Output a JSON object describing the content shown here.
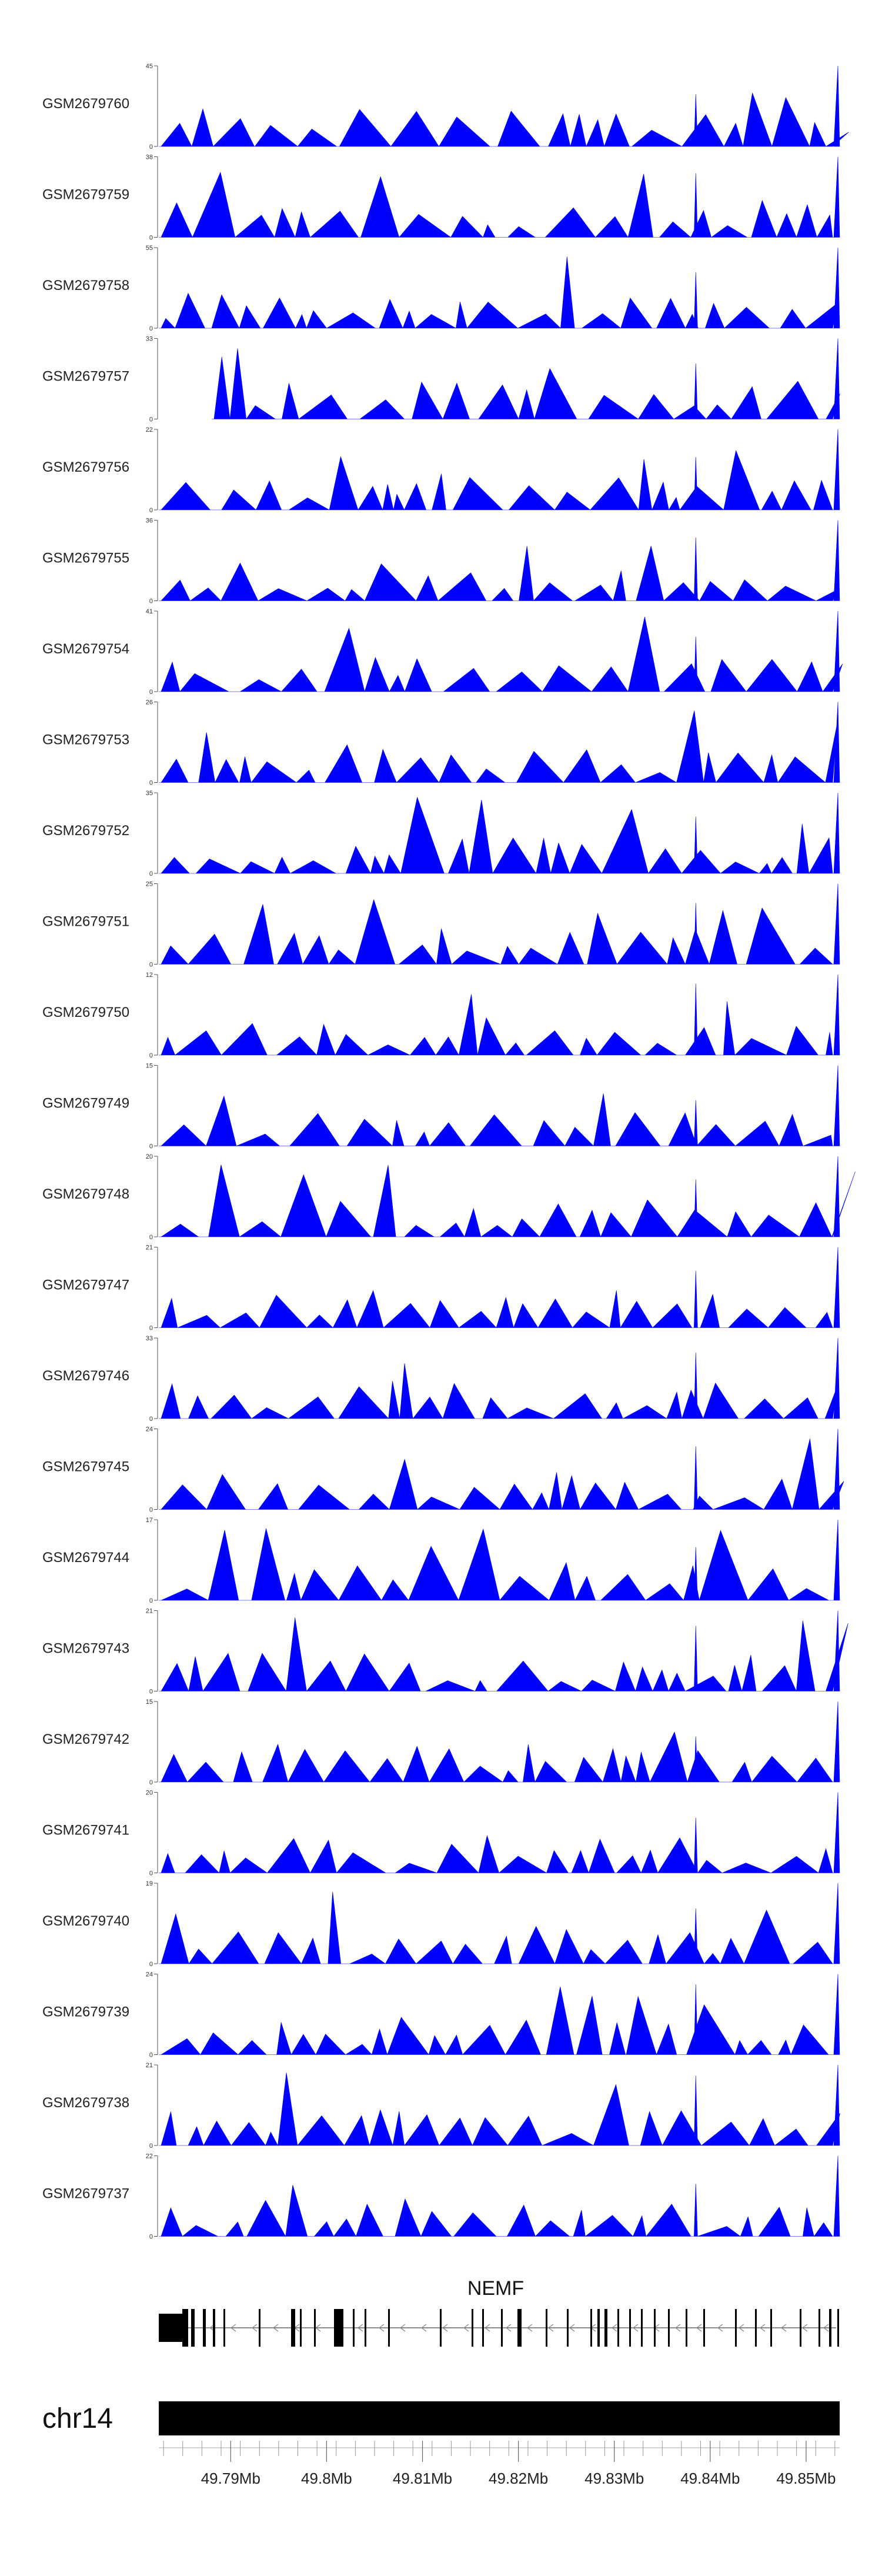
{
  "chart_data": {
    "type": "area",
    "title": "",
    "chromosome": "chr14",
    "gene": "NEMF",
    "fill_color": "#0000ff",
    "x_range_mb": [
      49.7825,
      49.8535
    ],
    "x_ticks": [
      {
        "value": 49.79,
        "label": "49.79Mb"
      },
      {
        "value": 49.8,
        "label": "49.8Mb"
      },
      {
        "value": 49.81,
        "label": "49.81Mb"
      },
      {
        "value": 49.82,
        "label": "49.82Mb"
      },
      {
        "value": 49.83,
        "label": "49.83Mb"
      },
      {
        "value": 49.84,
        "label": "49.84Mb"
      },
      {
        "value": 49.85,
        "label": "49.85Mb"
      }
    ],
    "tracks": [
      {
        "name": "GSM2679760",
        "ymax": 45,
        "ymin": 0
      },
      {
        "name": "GSM2679759",
        "ymax": 38,
        "ymin": 0
      },
      {
        "name": "GSM2679758",
        "ymax": 55,
        "ymin": 0
      },
      {
        "name": "GSM2679757",
        "ymax": 33,
        "ymin": 0
      },
      {
        "name": "GSM2679756",
        "ymax": 22,
        "ymin": 0
      },
      {
        "name": "GSM2679755",
        "ymax": 36,
        "ymin": 0
      },
      {
        "name": "GSM2679754",
        "ymax": 41,
        "ymin": 0
      },
      {
        "name": "GSM2679753",
        "ymax": 26,
        "ymin": 0
      },
      {
        "name": "GSM2679752",
        "ymax": 35,
        "ymin": 0
      },
      {
        "name": "GSM2679751",
        "ymax": 25,
        "ymin": 0
      },
      {
        "name": "GSM2679750",
        "ymax": 12,
        "ymin": 0
      },
      {
        "name": "GSM2679749",
        "ymax": 15,
        "ymin": 0
      },
      {
        "name": "GSM2679748",
        "ymax": 20,
        "ymin": 0
      },
      {
        "name": "GSM2679747",
        "ymax": 21,
        "ymin": 0
      },
      {
        "name": "GSM2679746",
        "ymax": 33,
        "ymin": 0
      },
      {
        "name": "GSM2679745",
        "ymax": 24,
        "ymin": 0
      },
      {
        "name": "GSM2679744",
        "ymax": 17,
        "ymin": 0
      },
      {
        "name": "GSM2679743",
        "ymax": 21,
        "ymin": 0
      },
      {
        "name": "GSM2679742",
        "ymax": 15,
        "ymin": 0
      },
      {
        "name": "GSM2679741",
        "ymax": 20,
        "ymin": 0
      },
      {
        "name": "GSM2679740",
        "ymax": 19,
        "ymin": 0
      },
      {
        "name": "GSM2679739",
        "ymax": 24,
        "ymin": 0
      },
      {
        "name": "GSM2679738",
        "ymax": 21,
        "ymin": 0
      },
      {
        "name": "GSM2679737",
        "ymax": 22,
        "ymin": 0
      }
    ]
  }
}
